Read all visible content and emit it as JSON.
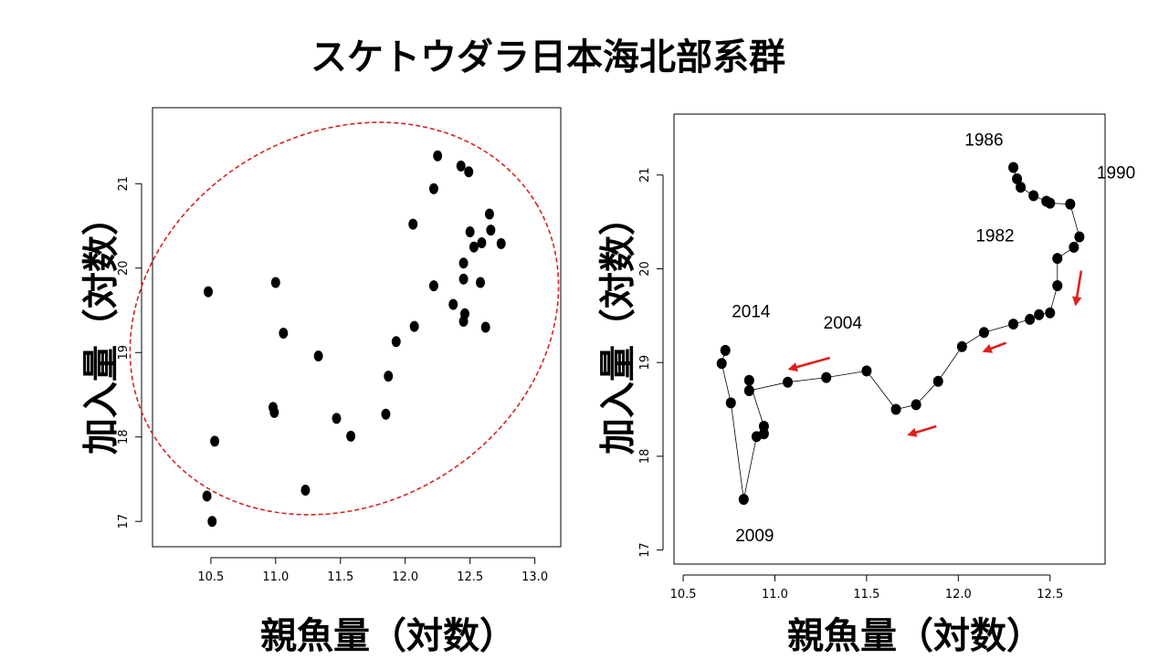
{
  "title": "スケトウダラ日本海北部系群",
  "chart_data": [
    {
      "type": "scatter",
      "xlabel": "親魚量（対数）",
      "ylabel": "加入量（対数）",
      "xlim": [
        10.05,
        13.2
      ],
      "ylim": [
        16.7,
        21.9
      ],
      "xticks": [
        10.5,
        11.0,
        11.5,
        12.0,
        12.5,
        13.0
      ],
      "yticks": [
        17,
        18,
        19,
        20,
        21
      ],
      "grid": false,
      "ellipse": {
        "color": "#d62222",
        "style": "dashed"
      },
      "points": [
        {
          "x": 10.48,
          "y": 19.72
        },
        {
          "x": 10.47,
          "y": 17.3
        },
        {
          "x": 10.51,
          "y": 17.0
        },
        {
          "x": 10.53,
          "y": 17.95
        },
        {
          "x": 11.0,
          "y": 19.83
        },
        {
          "x": 11.06,
          "y": 19.23
        },
        {
          "x": 10.98,
          "y": 18.35
        },
        {
          "x": 10.99,
          "y": 18.29
        },
        {
          "x": 11.23,
          "y": 17.37
        },
        {
          "x": 11.33,
          "y": 18.96
        },
        {
          "x": 11.47,
          "y": 18.22
        },
        {
          "x": 11.58,
          "y": 18.01
        },
        {
          "x": 11.85,
          "y": 18.27
        },
        {
          "x": 11.87,
          "y": 18.72
        },
        {
          "x": 11.93,
          "y": 19.13
        },
        {
          "x": 12.06,
          "y": 20.52
        },
        {
          "x": 12.07,
          "y": 19.31
        },
        {
          "x": 12.22,
          "y": 20.94
        },
        {
          "x": 12.22,
          "y": 19.79
        },
        {
          "x": 12.25,
          "y": 21.33
        },
        {
          "x": 12.37,
          "y": 19.57
        },
        {
          "x": 12.43,
          "y": 21.21
        },
        {
          "x": 12.45,
          "y": 20.06
        },
        {
          "x": 12.45,
          "y": 19.87
        },
        {
          "x": 12.45,
          "y": 19.37
        },
        {
          "x": 12.46,
          "y": 19.46
        },
        {
          "x": 12.49,
          "y": 21.14
        },
        {
          "x": 12.5,
          "y": 20.43
        },
        {
          "x": 12.53,
          "y": 20.25
        },
        {
          "x": 12.58,
          "y": 19.83
        },
        {
          "x": 12.59,
          "y": 20.3
        },
        {
          "x": 12.62,
          "y": 19.3
        },
        {
          "x": 12.65,
          "y": 20.64
        },
        {
          "x": 12.66,
          "y": 20.45
        },
        {
          "x": 12.74,
          "y": 20.29
        }
      ]
    },
    {
      "type": "line",
      "xlabel": "親魚量（対数）",
      "ylabel": "加入量（対数）",
      "xlim": [
        10.45,
        12.8
      ],
      "ylim": [
        16.85,
        21.65
      ],
      "xticks": [
        10.5,
        11.0,
        11.5,
        12.0,
        12.5
      ],
      "yticks": [
        17,
        18,
        19,
        20,
        21
      ],
      "grid": false,
      "path": [
        {
          "x": 12.3,
          "y": 21.08
        },
        {
          "x": 12.32,
          "y": 20.96
        },
        {
          "x": 12.34,
          "y": 20.87
        },
        {
          "x": 12.41,
          "y": 20.78
        },
        {
          "x": 12.48,
          "y": 20.72
        },
        {
          "x": 12.5,
          "y": 20.7
        },
        {
          "x": 12.61,
          "y": 20.69
        },
        {
          "x": 12.66,
          "y": 20.34
        },
        {
          "x": 12.63,
          "y": 20.23
        },
        {
          "x": 12.54,
          "y": 20.11
        },
        {
          "x": 12.54,
          "y": 19.82
        },
        {
          "x": 12.5,
          "y": 19.53
        },
        {
          "x": 12.44,
          "y": 19.51
        },
        {
          "x": 12.39,
          "y": 19.46
        },
        {
          "x": 12.3,
          "y": 19.41
        },
        {
          "x": 12.14,
          "y": 19.32
        },
        {
          "x": 12.02,
          "y": 19.17
        },
        {
          "x": 11.89,
          "y": 18.8
        },
        {
          "x": 11.77,
          "y": 18.55
        },
        {
          "x": 11.66,
          "y": 18.5
        },
        {
          "x": 11.5,
          "y": 18.91
        },
        {
          "x": 11.28,
          "y": 18.84
        },
        {
          "x": 11.07,
          "y": 18.79
        },
        {
          "x": 10.86,
          "y": 18.7
        },
        {
          "x": 10.86,
          "y": 18.81
        },
        {
          "x": 10.94,
          "y": 18.32
        },
        {
          "x": 10.94,
          "y": 18.24
        },
        {
          "x": 10.9,
          "y": 18.21
        },
        {
          "x": 10.83,
          "y": 17.54
        },
        {
          "x": 10.76,
          "y": 18.57
        },
        {
          "x": 10.71,
          "y": 18.99
        },
        {
          "x": 10.73,
          "y": 19.13
        }
      ],
      "year_labels": [
        {
          "text": "1986",
          "x": 12.14,
          "y": 21.38
        },
        {
          "text": "1990",
          "x": 12.86,
          "y": 21.03
        },
        {
          "text": "1982",
          "x": 12.2,
          "y": 20.36
        },
        {
          "text": "2004",
          "x": 11.37,
          "y": 19.43
        },
        {
          "text": "2014",
          "x": 10.87,
          "y": 19.55
        },
        {
          "text": "2009",
          "x": 10.89,
          "y": 17.16
        }
      ],
      "arrows": [
        {
          "color": "#e0201c",
          "from": {
            "x": 12.67,
            "y": 19.98
          },
          "to": {
            "x": 12.64,
            "y": 19.62
          }
        },
        {
          "color": "#e0201c",
          "from": {
            "x": 12.26,
            "y": 19.21
          },
          "to": {
            "x": 12.14,
            "y": 19.12
          }
        },
        {
          "color": "#e0201c",
          "from": {
            "x": 11.88,
            "y": 18.32
          },
          "to": {
            "x": 11.73,
            "y": 18.23
          }
        },
        {
          "color": "#e0201c",
          "from": {
            "x": 11.3,
            "y": 19.05
          },
          "to": {
            "x": 11.08,
            "y": 18.93
          }
        }
      ]
    }
  ]
}
